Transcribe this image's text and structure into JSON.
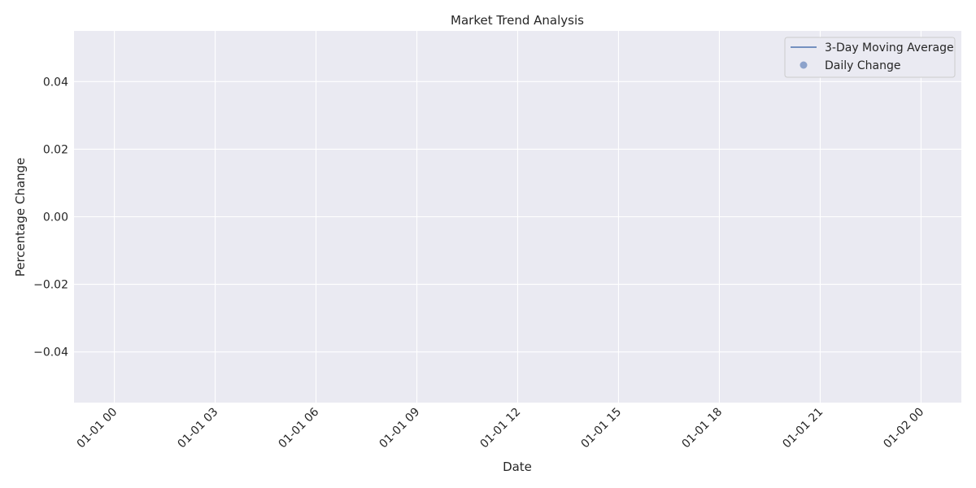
{
  "chart_data": {
    "type": "line",
    "title": "Market Trend Analysis",
    "xlabel": "Date",
    "ylabel": "Percentage Change",
    "x_axis": {
      "kind": "datetime",
      "range": [
        "2023-12-31T22:48:00",
        "2024-01-02T01:12:00"
      ],
      "ticks": [
        {
          "value": "2024-01-01T00:00:00",
          "label": "01-01 00"
        },
        {
          "value": "2024-01-01T03:00:00",
          "label": "01-01 03"
        },
        {
          "value": "2024-01-01T06:00:00",
          "label": "01-01 06"
        },
        {
          "value": "2024-01-01T09:00:00",
          "label": "01-01 09"
        },
        {
          "value": "2024-01-01T12:00:00",
          "label": "01-01 12"
        },
        {
          "value": "2024-01-01T15:00:00",
          "label": "01-01 15"
        },
        {
          "value": "2024-01-01T18:00:00",
          "label": "01-01 18"
        },
        {
          "value": "2024-01-01T21:00:00",
          "label": "01-01 21"
        },
        {
          "value": "2024-01-02T00:00:00",
          "label": "01-02 00"
        }
      ]
    },
    "y_axis": {
      "range": [
        -0.055,
        0.055
      ],
      "ticks": [
        {
          "value": -0.04,
          "label": "−0.04"
        },
        {
          "value": -0.02,
          "label": "−0.02"
        },
        {
          "value": 0.0,
          "label": "0.00"
        },
        {
          "value": 0.02,
          "label": "0.02"
        },
        {
          "value": 0.04,
          "label": "0.04"
        }
      ]
    },
    "grid": true,
    "legend_position": "top-right",
    "series": [
      {
        "name": "3-Day Moving Average",
        "kind": "line",
        "color": "#4c72b0",
        "x": [],
        "y": []
      },
      {
        "name": "Daily Change",
        "kind": "scatter",
        "color": "#4c72b0",
        "x": [],
        "y": []
      }
    ],
    "colors": {
      "plot_background": "#eaeaf2",
      "grid": "#ffffff"
    }
  }
}
